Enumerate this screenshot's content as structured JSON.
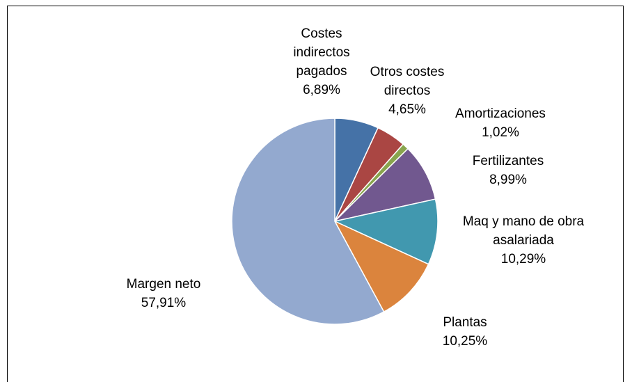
{
  "chart_data": {
    "type": "pie",
    "categories": [
      "Costes indirectos pagados",
      "Otros costes directos",
      "Amortizaciones",
      "Fertilizantes",
      "Maq y mano de obra asalariada",
      "Plantas",
      "Margen neto"
    ],
    "values": [
      6.89,
      4.65,
      1.02,
      8.99,
      10.29,
      10.25,
      57.91
    ],
    "value_labels": [
      "6,89%",
      "4,65%",
      "1,02%",
      "8,99%",
      "10,29%",
      "10,25%",
      "57,91%"
    ],
    "colors": [
      "#4572a7",
      "#aa4643",
      "#89a54e",
      "#71588f",
      "#4198af",
      "#db843d",
      "#93a9cf"
    ]
  }
}
